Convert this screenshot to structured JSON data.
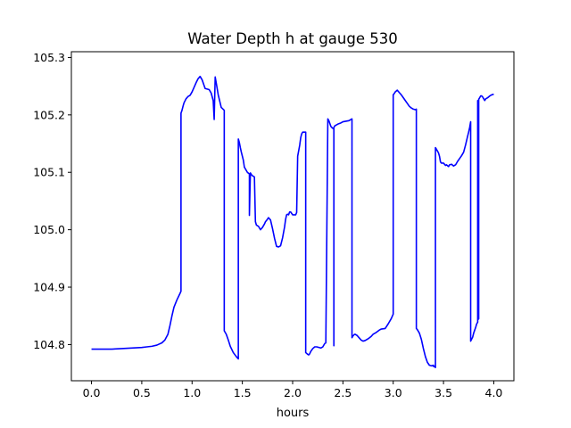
{
  "chart_data": {
    "type": "line",
    "title": "Water Depth h at gauge 530",
    "xlabel": "hours",
    "ylabel": "",
    "xlim": [
      -0.2,
      4.2
    ],
    "ylim": [
      104.737,
      105.31
    ],
    "xticks": [
      "0.0",
      "0.5",
      "1.0",
      "1.5",
      "2.0",
      "2.5",
      "3.0",
      "3.5",
      "4.0"
    ],
    "yticks": [
      "104.8",
      "104.9",
      "105.0",
      "105.1",
      "105.2",
      "105.3"
    ],
    "grid": false,
    "series": [
      {
        "color": "#0000ff",
        "x": [
          0.0,
          0.1,
          0.2,
          0.3,
          0.4,
          0.5,
          0.55,
          0.6,
          0.65,
          0.7,
          0.73,
          0.76,
          0.78,
          0.8,
          0.82,
          0.85,
          0.88,
          0.89,
          0.89,
          0.9,
          0.91,
          0.92,
          0.94,
          0.95,
          0.96,
          0.97,
          0.98,
          1.0,
          1.02,
          1.04,
          1.06,
          1.08,
          1.1,
          1.13,
          1.15,
          1.17,
          1.19,
          1.21,
          1.22,
          1.23,
          1.24,
          1.26,
          1.29,
          1.32,
          1.32,
          1.34,
          1.36,
          1.38,
          1.41,
          1.44,
          1.46,
          1.46,
          1.47,
          1.48,
          1.49,
          1.5,
          1.51,
          1.52,
          1.55,
          1.57,
          1.57,
          1.58,
          1.59,
          1.6,
          1.62,
          1.63,
          1.64,
          1.66,
          1.68,
          1.7,
          1.72,
          1.73,
          1.74,
          1.76,
          1.78,
          1.8,
          1.82,
          1.84,
          1.86,
          1.88,
          1.9,
          1.92,
          1.93,
          1.94,
          1.95,
          1.96,
          1.97,
          1.98,
          2.0,
          2.03,
          2.04,
          2.05,
          2.07,
          2.08,
          2.09,
          2.1,
          2.12,
          2.13,
          2.13,
          2.15,
          2.16,
          2.17,
          2.18,
          2.2,
          2.22,
          2.24,
          2.26,
          2.28,
          2.3,
          2.32,
          2.33,
          2.35,
          2.36,
          2.37,
          2.38,
          2.39,
          2.41,
          2.41,
          2.41,
          2.42,
          2.43,
          2.45,
          2.48,
          2.5,
          2.53,
          2.56,
          2.59,
          2.59,
          2.6,
          2.61,
          2.62,
          2.64,
          2.66,
          2.68,
          2.7,
          2.72,
          2.75,
          2.78,
          2.8,
          2.83,
          2.86,
          2.88,
          2.92,
          2.95,
          2.98,
          3.0,
          3.0,
          3.01,
          3.02,
          3.04,
          3.06,
          3.08,
          3.1,
          3.12,
          3.14,
          3.16,
          3.18,
          3.2,
          3.22,
          3.23,
          3.23,
          3.24,
          3.26,
          3.28,
          3.3,
          3.32,
          3.34,
          3.36,
          3.38,
          3.4,
          3.4,
          3.41,
          3.42,
          3.42,
          3.44,
          3.45,
          3.46,
          3.47,
          3.48,
          3.5,
          3.52,
          3.53,
          3.55,
          3.56,
          3.58,
          3.6,
          3.62,
          3.64,
          3.66,
          3.68,
          3.7,
          3.72,
          3.74,
          3.75,
          3.76,
          3.77,
          3.77,
          3.79,
          3.8,
          3.82,
          3.83,
          3.84,
          3.84,
          3.84,
          3.85,
          3.85,
          3.86,
          3.87,
          3.88,
          3.89,
          3.9,
          3.91,
          3.92,
          3.93,
          3.94,
          3.96,
          3.98,
          4.0
        ],
        "y": [
          104.792,
          104.792,
          104.792,
          104.793,
          104.794,
          104.795,
          104.796,
          104.797,
          104.799,
          104.803,
          104.808,
          104.818,
          104.833,
          104.85,
          104.865,
          104.878,
          104.889,
          104.893,
          105.203,
          105.208,
          105.215,
          105.221,
          105.228,
          105.23,
          105.232,
          105.233,
          105.234,
          105.24,
          105.248,
          105.256,
          105.263,
          105.267,
          105.261,
          105.246,
          105.245,
          105.244,
          105.238,
          105.225,
          105.192,
          105.266,
          105.256,
          105.235,
          105.213,
          105.208,
          104.824,
          104.818,
          104.808,
          104.797,
          104.786,
          104.779,
          104.775,
          105.158,
          105.152,
          105.143,
          105.135,
          105.128,
          105.121,
          105.109,
          105.1,
          105.097,
          105.025,
          105.099,
          105.096,
          105.094,
          105.092,
          105.014,
          105.008,
          105.006,
          105.0,
          105.004,
          105.01,
          105.014,
          105.016,
          105.021,
          105.017,
          105.002,
          104.985,
          104.971,
          104.97,
          104.972,
          104.986,
          105.005,
          105.018,
          105.026,
          105.027,
          105.026,
          105.031,
          105.031,
          105.026,
          105.026,
          105.03,
          105.128,
          105.147,
          105.16,
          105.167,
          105.17,
          105.17,
          105.17,
          104.786,
          104.783,
          104.782,
          104.784,
          104.788,
          104.793,
          104.796,
          104.796,
          104.795,
          104.794,
          104.796,
          104.802,
          104.803,
          105.193,
          105.19,
          105.185,
          105.18,
          105.178,
          105.175,
          104.798,
          105.178,
          105.181,
          105.182,
          105.184,
          105.186,
          105.188,
          105.189,
          105.19,
          105.193,
          104.812,
          104.815,
          104.817,
          104.818,
          104.816,
          104.812,
          104.808,
          104.806,
          104.807,
          104.81,
          104.814,
          104.818,
          104.821,
          104.825,
          104.827,
          104.828,
          104.836,
          104.845,
          104.853,
          105.235,
          105.237,
          105.24,
          105.243,
          105.239,
          105.235,
          105.23,
          105.225,
          105.22,
          105.215,
          105.212,
          105.21,
          105.209,
          105.21,
          104.828,
          104.826,
          104.82,
          104.809,
          104.793,
          104.779,
          104.769,
          104.764,
          104.763,
          104.764,
          104.762,
          104.762,
          104.76,
          105.143,
          105.137,
          105.134,
          105.128,
          105.118,
          105.116,
          105.116,
          105.112,
          105.113,
          105.11,
          105.113,
          105.114,
          105.111,
          105.113,
          105.119,
          105.124,
          105.129,
          105.135,
          105.148,
          105.163,
          105.17,
          105.178,
          105.188,
          104.806,
          104.813,
          104.82,
          104.83,
          104.836,
          104.839,
          105.225,
          104.843,
          104.845,
          105.227,
          105.23,
          105.233,
          105.233,
          105.231,
          105.228,
          105.225,
          105.228,
          105.229,
          105.23,
          105.233,
          105.235,
          105.236
        ]
      }
    ]
  }
}
